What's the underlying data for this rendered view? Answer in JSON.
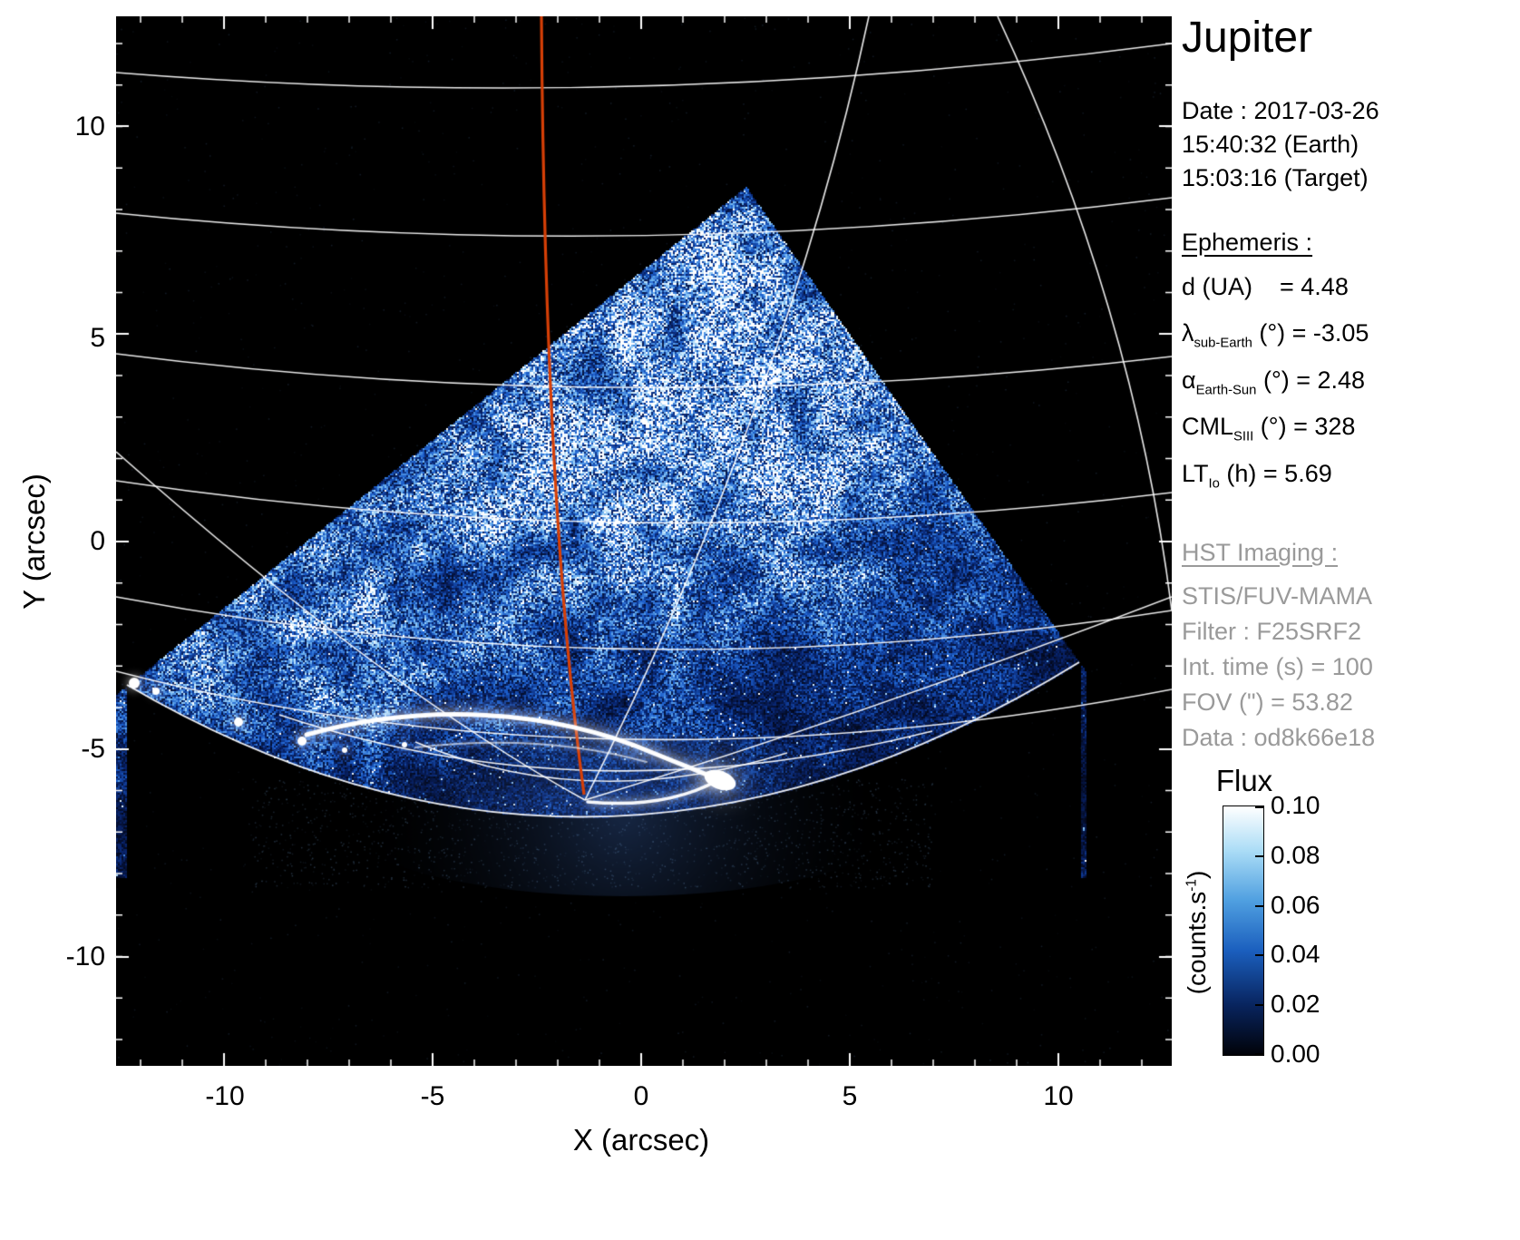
{
  "info_panel": {
    "title": "Jupiter",
    "date_label": "Date : 2017-03-26",
    "time_earth": "15:40:32 (Earth)",
    "time_target": "15:03:16 (Target)",
    "ephemeris": {
      "heading": "Ephemeris :",
      "rows": [
        {
          "pre": "d (UA)",
          "sub": "",
          "post": "    = 4.48"
        },
        {
          "pre": "λ",
          "sub": "sub-Earth",
          "post": " (°) = -3.05"
        },
        {
          "pre": "α",
          "sub": "Earth-Sun",
          "post": " (°) = 2.48"
        },
        {
          "pre": "CML",
          "sub": "SIII",
          "post": " (°) = 328"
        },
        {
          "pre": "LT",
          "sub": "Io",
          "post": " (h) = 5.69"
        }
      ]
    },
    "hst": {
      "heading": "HST Imaging :",
      "color": "#9a9a9a",
      "lines": [
        "STIS/FUV-MAMA",
        "Filter : F25SRF2",
        "Int. time (s) = 100",
        "FOV (\") = 53.82",
        "Data : od8k66e18"
      ]
    }
  },
  "axes": {
    "x": {
      "label": "X (arcsec)",
      "ticks": [
        "-10",
        "-5",
        "0",
        "5",
        "10"
      ]
    },
    "y": {
      "label": "Y (arcsec)",
      "ticks": [
        "10",
        "5",
        "0",
        "-5",
        "-10"
      ]
    }
  },
  "colorbar": {
    "title": "Flux",
    "unit": {
      "pre": "(counts.s",
      "sup": "-1",
      "post": ")"
    },
    "tick_labels": [
      "0.10",
      "0.08",
      "0.06",
      "0.04",
      "0.02",
      "0.00"
    ]
  },
  "chart_data": {
    "type": "heatmap",
    "title": "Jupiter",
    "xlabel": "X (arcsec)",
    "ylabel": "Y (arcsec)",
    "xlim": [
      -12.6,
      12.7
    ],
    "ylim": [
      -12.7,
      12.6
    ],
    "xticks": [
      -10,
      -5,
      0,
      5,
      10
    ],
    "yticks": [
      10,
      5,
      0,
      -5,
      -10
    ],
    "grid": "white planetocentric latitude/longitude graticule overlaid on image; red CML meridian",
    "colorbar": {
      "label": "Flux",
      "unit": "counts.s-1",
      "min": 0.0,
      "max": 0.1,
      "ticks": [
        0.0,
        0.02,
        0.04,
        0.06,
        0.08,
        0.1
      ]
    },
    "colormap": [
      "#010208",
      "#08245e",
      "#1b5fbe",
      "#4f9fe0",
      "#aadcf6",
      "#ffffff"
    ],
    "features": {
      "detector_footprint_vertices_arcsec": [
        [
          2.5,
          8.6
        ],
        [
          10.5,
          -2.9
        ],
        [
          -1.0,
          -6.6
        ],
        [
          -12.3,
          -3.5
        ]
      ],
      "auroral_arc_center_arcsec": [
        0.0,
        -5.5
      ],
      "brightest_spot_arcsec": [
        1.8,
        -5.7
      ],
      "meridian_convergence_pole_arcsec": [
        -1.4,
        -6.2
      ],
      "cml_meridian_color": "#d63f06",
      "cml_meridian_top_arcsec": [
        -2.4,
        12.6
      ],
      "background_color": "#000000"
    }
  }
}
